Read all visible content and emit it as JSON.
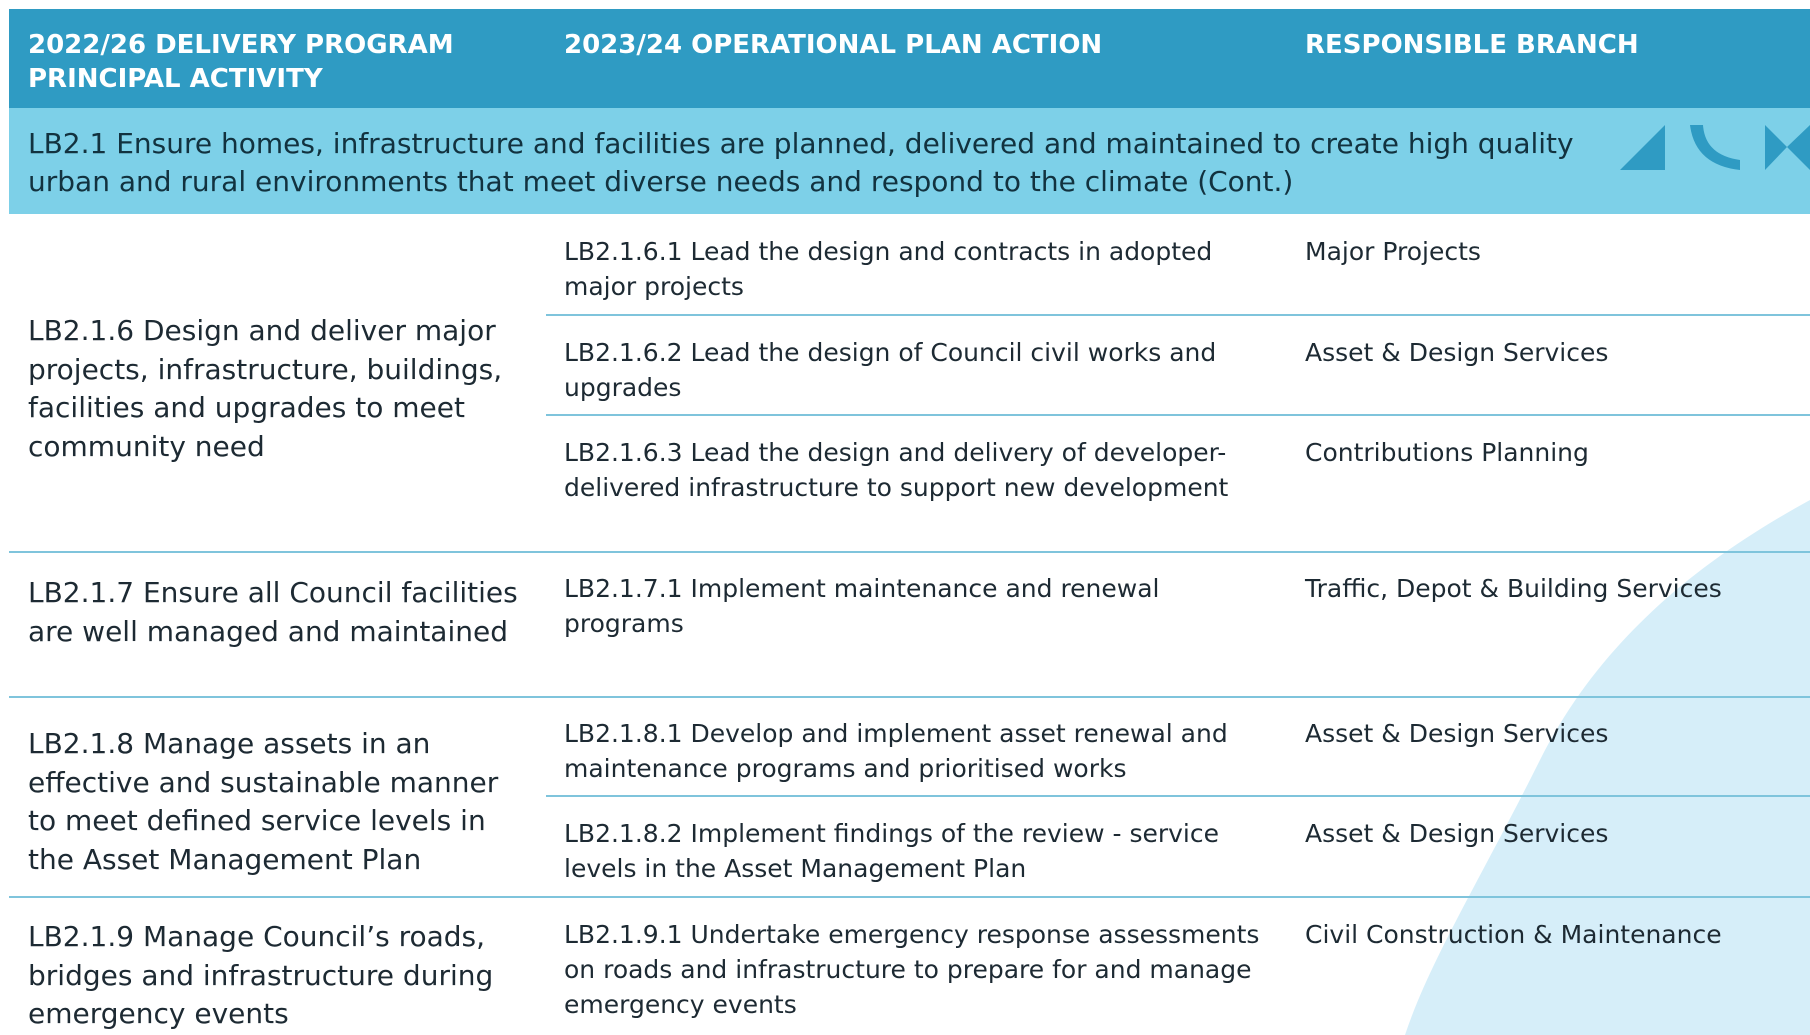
{
  "header": {
    "columns": [
      "2022/26 DELIVERY PROGRAM PRINCIPAL ACTIVITY",
      "2023/24 OPERATIONAL PLAN ACTION",
      "RESPONSIBLE BRANCH"
    ]
  },
  "section": {
    "title": "LB2.1 Ensure homes, infrastructure and facilities are planned, delivered and maintained to create high quality urban and rural environments that meet diverse needs and respond to the climate (Cont.)"
  },
  "rows": [
    {
      "activity": "LB2.1.6 Design and deliver major projects, infrastructure, buildings, facilities and upgrades to meet community need",
      "actions": [
        {
          "text": "LB2.1.6.1 Lead the design and contracts in adopted major projects",
          "branch": "Major Projects"
        },
        {
          "text": "LB2.1.6.2 Lead the design of Council civil works and upgrades",
          "branch": "Asset & Design Services"
        },
        {
          "text": "LB2.1.6.3 Lead the design and delivery of developer-delivered infrastructure to support new development",
          "branch": "Contributions Planning"
        }
      ]
    },
    {
      "activity": "LB2.1.7 Ensure all Council facilities are well managed and maintained",
      "actions": [
        {
          "text": "LB2.1.7.1 Implement maintenance and renewal programs",
          "branch": "Traffic, Depot & Building Services"
        }
      ]
    },
    {
      "activity": "LB2.1.8 Manage assets in an effective and sustainable manner to meet defined service levels in the Asset Management Plan",
      "actions": [
        {
          "text": "LB2.1.8.1 Develop and implement asset renewal and maintenance programs and prioritised works",
          "branch": "Asset & Design Services"
        },
        {
          "text": "LB2.1.8.2 Implement findings of the review - service levels in the Asset Management Plan",
          "branch": "Asset & Design Services"
        }
      ]
    },
    {
      "activity": "LB2.1.9 Manage Council’s roads, bridges and infrastructure during emergency events",
      "actions": [
        {
          "text": "LB2.1.9.1 Undertake emergency response assessments on roads and infrastructure to prepare for and manage emergency events",
          "branch": "Civil Construction & Maintenance"
        }
      ]
    }
  ]
}
